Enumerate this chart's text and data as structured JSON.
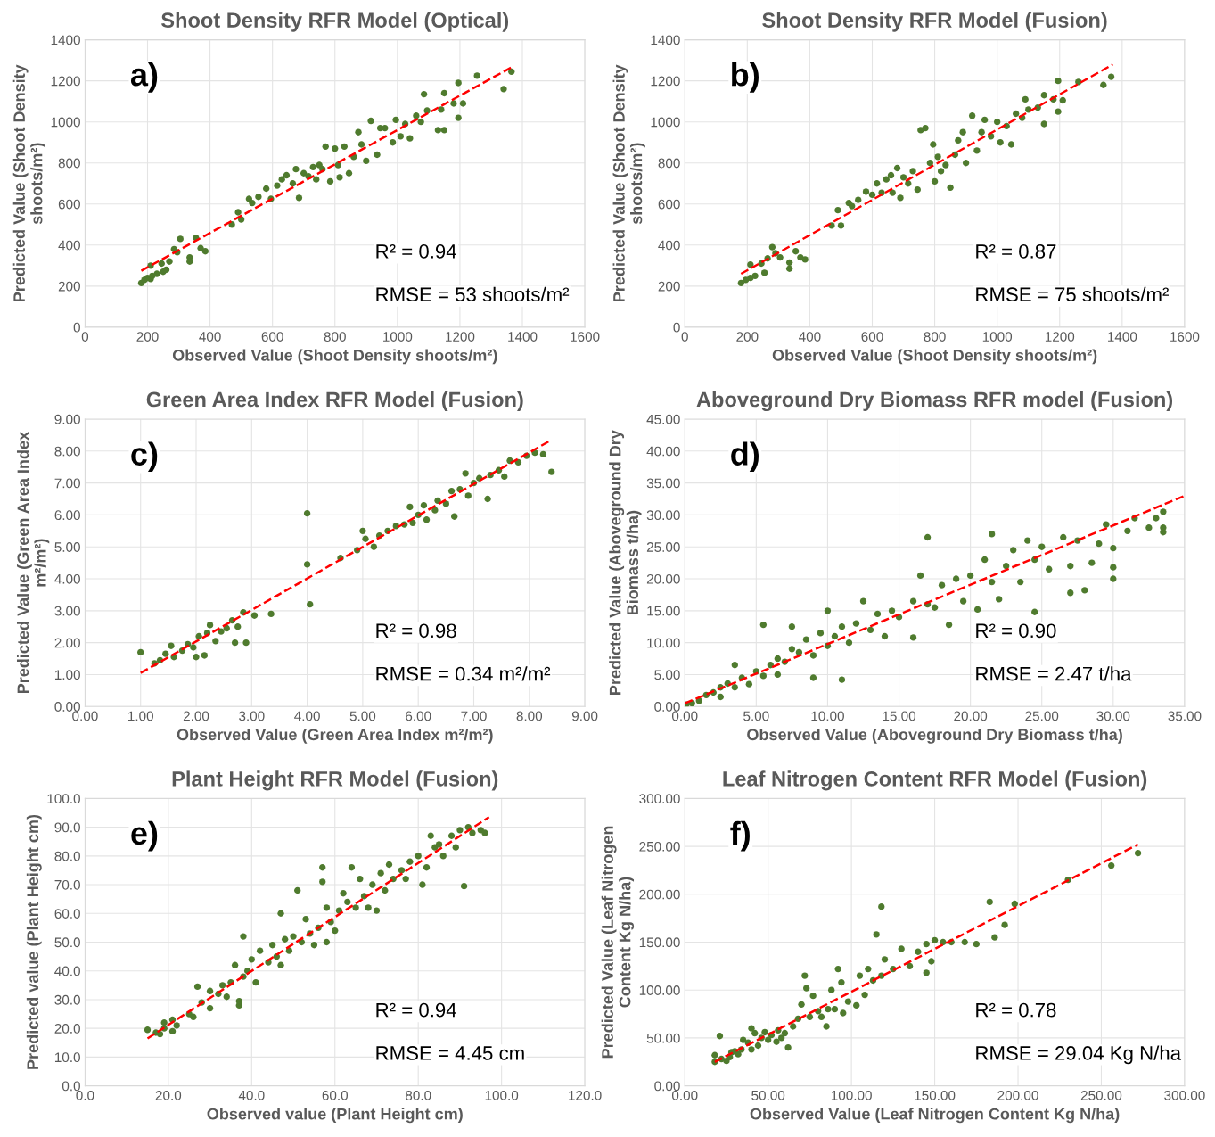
{
  "chart_data": [
    {
      "type": "scatter",
      "title": "Shoot Density RFR Model (Optical)",
      "xlabel": "Observed Value (Shoot Density shoots/m²)",
      "ylabel": "Predicted Value (Shoot Density\nshoots/m²)",
      "xlim": [
        0,
        1600
      ],
      "xticks": [
        0,
        200,
        400,
        600,
        800,
        1000,
        1200,
        1400,
        1600
      ],
      "ylim": [
        0,
        1400
      ],
      "yticks": [
        0,
        200,
        400,
        600,
        800,
        1000,
        1200,
        1400
      ],
      "grid": true,
      "marker": "circle",
      "annotations": [
        "a)",
        "R² = 0.94",
        "RMSE = 53 shoots/m²"
      ],
      "series": [
        {
          "color": "#4f7b2e",
          "x": [
            180,
            190,
            200,
            210,
            210,
            215,
            230,
            245,
            250,
            260,
            270,
            285,
            295,
            305,
            335,
            335,
            355,
            370,
            385,
            470,
            490,
            500,
            525,
            535,
            555,
            580,
            595,
            615,
            630,
            645,
            665,
            675,
            685,
            700,
            715,
            730,
            740,
            750,
            760,
            770,
            785,
            800,
            810,
            815,
            830,
            845,
            860,
            875,
            885,
            900,
            915,
            935,
            945,
            960,
            985,
            995,
            1010,
            1025,
            1040,
            1060,
            1075,
            1085,
            1095,
            1130,
            1140,
            1150,
            1150,
            1180,
            1195,
            1195,
            1210,
            1255,
            1340,
            1365
          ],
          "values": [
            215,
            230,
            240,
            235,
            300,
            250,
            260,
            310,
            270,
            280,
            320,
            380,
            365,
            430,
            340,
            320,
            435,
            385,
            370,
            500,
            560,
            525,
            625,
            605,
            635,
            675,
            625,
            690,
            720,
            740,
            700,
            770,
            630,
            750,
            735,
            780,
            720,
            790,
            770,
            880,
            710,
            870,
            790,
            730,
            880,
            750,
            830,
            950,
            890,
            810,
            1005,
            840,
            970,
            970,
            900,
            1010,
            930,
            990,
            920,
            1030,
            1000,
            1135,
            1055,
            960,
            1060,
            1140,
            960,
            1090,
            1190,
            1020,
            1090,
            1225,
            1160,
            1245
          ]
        },
        {
          "type": "line",
          "color": "#ff0000",
          "line_style": "dashed",
          "marker": "none",
          "x": [
            180,
            1370
          ],
          "values": [
            275,
            1270
          ]
        }
      ]
    },
    {
      "type": "scatter",
      "title": "Shoot Density RFR Model (Fusion)",
      "xlabel": "Observed Value (Shoot Density shoots/m²)",
      "ylabel": "Predicted Value (Shoot Density\nshoots/m²)",
      "xlim": [
        0,
        1600
      ],
      "xticks": [
        0,
        200,
        400,
        600,
        800,
        1000,
        1200,
        1400,
        1600
      ],
      "ylim": [
        0,
        1400
      ],
      "yticks": [
        0,
        200,
        400,
        600,
        800,
        1000,
        1200,
        1400
      ],
      "grid": true,
      "marker": "circle",
      "annotations": [
        "b)",
        "R² = 0.87",
        "RMSE = 75 shoots/m²"
      ],
      "series": [
        {
          "color": "#4f7b2e",
          "x": [
            180,
            195,
            210,
            210,
            225,
            245,
            255,
            265,
            280,
            290,
            305,
            335,
            335,
            355,
            370,
            385,
            470,
            490,
            500,
            525,
            535,
            555,
            580,
            600,
            615,
            630,
            645,
            660,
            665,
            680,
            690,
            700,
            715,
            730,
            745,
            755,
            770,
            785,
            795,
            800,
            810,
            820,
            835,
            850,
            865,
            875,
            890,
            900,
            920,
            935,
            950,
            960,
            980,
            1000,
            1010,
            1030,
            1045,
            1060,
            1080,
            1090,
            1100,
            1130,
            1150,
            1150,
            1180,
            1195,
            1195,
            1210,
            1260,
            1340,
            1365
          ],
          "values": [
            215,
            230,
            240,
            305,
            250,
            310,
            265,
            335,
            390,
            360,
            340,
            315,
            285,
            370,
            340,
            330,
            495,
            570,
            495,
            605,
            590,
            620,
            660,
            645,
            700,
            655,
            720,
            740,
            655,
            775,
            630,
            730,
            700,
            760,
            670,
            960,
            970,
            800,
            890,
            710,
            830,
            760,
            790,
            680,
            840,
            910,
            950,
            800,
            1030,
            860,
            950,
            1010,
            930,
            1000,
            900,
            980,
            890,
            1040,
            1020,
            1110,
            1060,
            1070,
            1130,
            990,
            1110,
            1200,
            1050,
            1105,
            1195,
            1180,
            1220
          ]
        },
        {
          "type": "line",
          "color": "#ff0000",
          "line_style": "dashed",
          "marker": "none",
          "x": [
            180,
            1370
          ],
          "values": [
            260,
            1280
          ]
        }
      ]
    },
    {
      "type": "scatter",
      "title": "Green Area Index RFR Model (Fusion)",
      "xlabel": "Observed Value (Green Area Index m²/m²)",
      "ylabel": "Predicted Value (Green Area Index\nm²/m²)",
      "xlim": [
        0,
        9
      ],
      "xticks": [
        {
          "value": 0,
          "label": "0.00"
        },
        {
          "value": 1,
          "label": "1.00"
        },
        {
          "value": 2,
          "label": "2.00"
        },
        {
          "value": 3,
          "label": "3.00"
        },
        {
          "value": 4,
          "label": "4.00"
        },
        {
          "value": 5,
          "label": "5.00"
        },
        {
          "value": 6,
          "label": "6.00"
        },
        {
          "value": 7,
          "label": "7.00"
        },
        {
          "value": 8,
          "label": "8.00"
        },
        {
          "value": 9,
          "label": "9.00"
        }
      ],
      "ylim": [
        0,
        9
      ],
      "yticks": [
        {
          "value": 0,
          "label": "0.00"
        },
        {
          "value": 1,
          "label": "1.00"
        },
        {
          "value": 2,
          "label": "2.00"
        },
        {
          "value": 3,
          "label": "3.00"
        },
        {
          "value": 4,
          "label": "4.00"
        },
        {
          "value": 5,
          "label": "5.00"
        },
        {
          "value": 6,
          "label": "6.00"
        },
        {
          "value": 7,
          "label": "7.00"
        },
        {
          "value": 8,
          "label": "8.00"
        },
        {
          "value": 9,
          "label": "9.00"
        }
      ],
      "grid": true,
      "marker": "circle",
      "annotations": [
        "c)",
        "R² = 0.98",
        "RMSE = 0.34 m²/m²"
      ],
      "series": [
        {
          "color": "#4f7b2e",
          "x": [
            1.0,
            1.25,
            1.35,
            1.45,
            1.55,
            1.6,
            1.75,
            1.85,
            1.95,
            2.05,
            2.0,
            2.15,
            2.2,
            2.25,
            2.35,
            2.45,
            2.55,
            2.65,
            2.7,
            2.75,
            2.85,
            2.9,
            3.05,
            3.35,
            4.0,
            4.0,
            4.05,
            4.6,
            4.9,
            5.0,
            5.05,
            5.2,
            5.3,
            5.45,
            5.6,
            5.75,
            5.85,
            5.9,
            6.0,
            6.1,
            6.15,
            6.3,
            6.35,
            6.5,
            6.6,
            6.65,
            6.75,
            6.85,
            6.9,
            7.0,
            7.1,
            7.25,
            7.3,
            7.45,
            7.55,
            7.65,
            7.8,
            7.95,
            8.1,
            8.25,
            8.4
          ],
          "values": [
            1.7,
            1.35,
            1.45,
            1.65,
            1.9,
            1.55,
            1.75,
            1.95,
            1.85,
            2.2,
            1.55,
            1.6,
            2.3,
            2.55,
            2.05,
            2.35,
            2.45,
            2.7,
            2.0,
            2.5,
            2.95,
            2.0,
            2.85,
            2.9,
            6.05,
            4.45,
            3.2,
            4.65,
            4.9,
            5.5,
            5.25,
            5.0,
            5.35,
            5.5,
            5.65,
            5.7,
            6.25,
            5.75,
            6.0,
            6.3,
            5.85,
            6.15,
            6.45,
            6.35,
            6.75,
            5.95,
            6.8,
            7.3,
            6.6,
            7.0,
            7.15,
            6.5,
            7.25,
            7.4,
            7.2,
            7.7,
            7.65,
            7.85,
            7.95,
            7.9,
            7.35
          ]
        },
        {
          "type": "line",
          "color": "#ff0000",
          "line_style": "dashed",
          "marker": "none",
          "x": [
            1.0,
            8.4
          ],
          "values": [
            1.05,
            8.35
          ]
        }
      ]
    },
    {
      "type": "scatter",
      "title": "Aboveground Dry Biomass RFR model (Fusion)",
      "xlabel": "Observed Value (Aboveground Dry Biomass t/ha)",
      "ylabel": "Predicted Value (Aboveground Dry\nBiomass t/ha)",
      "xlim": [
        0,
        35
      ],
      "xticks": [
        {
          "value": 0,
          "label": "0.00"
        },
        {
          "value": 5,
          "label": "5.00"
        },
        {
          "value": 10,
          "label": "10.00"
        },
        {
          "value": 15,
          "label": "15.00"
        },
        {
          "value": 20,
          "label": "20.00"
        },
        {
          "value": 25,
          "label": "25.00"
        },
        {
          "value": 30,
          "label": "30.00"
        },
        {
          "value": 35,
          "label": "35.00"
        }
      ],
      "ylim": [
        0,
        45
      ],
      "yticks": [
        {
          "value": 0,
          "label": "0.00"
        },
        {
          "value": 5,
          "label": "5.00"
        },
        {
          "value": 10,
          "label": "10.00"
        },
        {
          "value": 15,
          "label": "15.00"
        },
        {
          "value": 20,
          "label": "20.00"
        },
        {
          "value": 25,
          "label": "25.00"
        },
        {
          "value": 30,
          "label": "30.00"
        },
        {
          "value": 35,
          "label": "35.00"
        },
        {
          "value": 40,
          "label": "40.00"
        },
        {
          "value": 45,
          "label": "45.00"
        }
      ],
      "grid": true,
      "marker": "circle",
      "annotations": [
        "d)",
        "R² = 0.90",
        "RMSE = 2.47 t/ha"
      ],
      "series": [
        {
          "color": "#4f7b2e",
          "x": [
            0.1,
            0.5,
            1.0,
            1.5,
            2.0,
            2.5,
            2.5,
            3.0,
            3.5,
            3.5,
            4.0,
            4.5,
            5.0,
            5.5,
            5.5,
            6.0,
            6.5,
            6.5,
            7.0,
            7.5,
            7.5,
            8.0,
            8.5,
            9.0,
            9.0,
            9.5,
            10.0,
            10.0,
            10.5,
            11.0,
            11.0,
            11.5,
            12.0,
            12.5,
            13.0,
            13.5,
            14.0,
            14.5,
            15.0,
            16.0,
            16.0,
            16.5,
            17.0,
            17.0,
            17.5,
            18.0,
            18.5,
            19.0,
            19.5,
            20.0,
            20.5,
            21.0,
            21.5,
            21.5,
            22.0,
            22.5,
            23.0,
            23.5,
            24.0,
            24.5,
            24.5,
            25.0,
            25.5,
            26.5,
            27.0,
            27.0,
            27.5,
            28.0,
            28.5,
            29.0,
            29.5,
            30.0,
            30.0,
            30.0,
            31.0,
            31.5,
            32.5,
            33.0,
            33.5,
            33.5,
            33.5
          ],
          "values": [
            0.3,
            0.5,
            0.9,
            1.8,
            2.2,
            3.0,
            1.5,
            3.6,
            6.5,
            3.0,
            4.5,
            3.5,
            5.5,
            12.8,
            4.8,
            6.5,
            7.5,
            5.0,
            7.0,
            9.0,
            12.5,
            8.5,
            10.5,
            4.5,
            8.0,
            11.5,
            15.0,
            9.5,
            11.0,
            4.2,
            12.5,
            10.0,
            13.0,
            16.5,
            12.0,
            14.5,
            11.0,
            15.0,
            14.0,
            10.8,
            16.5,
            20.5,
            26.5,
            16.0,
            15.5,
            19.0,
            12.8,
            20.0,
            16.5,
            20.5,
            15.2,
            23.0,
            27.0,
            19.5,
            16.8,
            22.0,
            24.5,
            19.5,
            26.0,
            14.8,
            23.0,
            25.0,
            21.5,
            26.5,
            17.8,
            22.0,
            26.0,
            18.2,
            22.5,
            25.5,
            28.5,
            21.8,
            20.0,
            24.8,
            27.5,
            29.5,
            28.0,
            29.5,
            28.0,
            30.5,
            27.3
          ]
        },
        {
          "type": "line",
          "color": "#ff0000",
          "line_style": "dashed",
          "marker": "none",
          "x": [
            0,
            35
          ],
          "values": [
            0.5,
            33
          ]
        }
      ]
    },
    {
      "type": "scatter",
      "title": "Plant Height RFR Model (Fusion)",
      "xlabel": "Observed value (Plant Height cm)",
      "ylabel": "Predicted value (Plant Height cm)",
      "xlim": [
        0,
        120
      ],
      "xticks": [
        {
          "value": 0,
          "label": "0.0"
        },
        {
          "value": 20,
          "label": "20.0"
        },
        {
          "value": 40,
          "label": "40.0"
        },
        {
          "value": 60,
          "label": "60.0"
        },
        {
          "value": 80,
          "label": "80.0"
        },
        {
          "value": 100,
          "label": "100.0"
        },
        {
          "value": 120,
          "label": "120.0"
        }
      ],
      "ylim": [
        0,
        100
      ],
      "yticks": [
        {
          "value": 0,
          "label": "0.0"
        },
        {
          "value": 10,
          "label": "10.0"
        },
        {
          "value": 20,
          "label": "20.0"
        },
        {
          "value": 30,
          "label": "30.0"
        },
        {
          "value": 40,
          "label": "40.0"
        },
        {
          "value": 50,
          "label": "50.0"
        },
        {
          "value": 60,
          "label": "60.0"
        },
        {
          "value": 70,
          "label": "70.0"
        },
        {
          "value": 80,
          "label": "80.0"
        },
        {
          "value": 90,
          "label": "90.0"
        },
        {
          "value": 100,
          "label": "100.0"
        }
      ],
      "grid": true,
      "marker": "circle",
      "annotations": [
        "e)",
        "R² = 0.94",
        "RMSE = 4.45 cm"
      ],
      "series": [
        {
          "color": "#4f7b2e",
          "x": [
            15,
            17,
            18,
            19,
            19,
            21,
            21,
            22,
            25,
            26,
            27,
            28,
            30,
            30,
            32,
            33,
            34,
            35,
            36,
            37,
            37,
            38,
            38,
            39,
            40,
            41,
            42,
            44,
            45,
            46,
            47,
            47,
            48,
            49,
            50,
            51,
            52,
            53,
            54,
            55,
            56,
            57,
            57,
            58,
            58,
            59,
            60,
            61,
            62,
            63,
            64,
            65,
            66,
            67,
            68,
            69,
            70,
            71,
            72,
            73,
            74,
            76,
            77,
            78,
            80,
            81,
            82,
            83,
            84,
            85,
            86,
            88,
            89,
            90,
            91,
            92,
            93,
            95,
            96
          ],
          "values": [
            19.5,
            18.5,
            18,
            22,
            20,
            23,
            19,
            21,
            25,
            24,
            34.5,
            29,
            27,
            33,
            32,
            35,
            31,
            36,
            42,
            28,
            29.5,
            52,
            38,
            40,
            44,
            36,
            47,
            43,
            49,
            45,
            42,
            60,
            51,
            47,
            52,
            68,
            50,
            58,
            53,
            49,
            55,
            76,
            71,
            50,
            62,
            57,
            54,
            61,
            67,
            64,
            76,
            62,
            72,
            66,
            62,
            70,
            61,
            74,
            68,
            77,
            72,
            75,
            72,
            78,
            80,
            70,
            76,
            87,
            83,
            84,
            80,
            87,
            83,
            89,
            69.5,
            90,
            88,
            89,
            88
          ]
        },
        {
          "type": "line",
          "color": "#ff0000",
          "line_style": "dashed",
          "marker": "none",
          "x": [
            15,
            97
          ],
          "values": [
            16.5,
            93.5
          ]
        }
      ]
    },
    {
      "type": "scatter",
      "title": "Leaf Nitrogen Content RFR Model (Fusion)",
      "xlabel": "Observed Value (Leaf Nitrogen Content Kg N/ha)",
      "ylabel": "Predicted Value (Leaf Nitrogen\nContent Kg N/ha)",
      "xlim": [
        0,
        300
      ],
      "xticks": [
        {
          "value": 0,
          "label": "0.00"
        },
        {
          "value": 50,
          "label": "50.00"
        },
        {
          "value": 100,
          "label": "100.00"
        },
        {
          "value": 150,
          "label": "150.00"
        },
        {
          "value": 200,
          "label": "200.00"
        },
        {
          "value": 250,
          "label": "250.00"
        },
        {
          "value": 300,
          "label": "300.00"
        }
      ],
      "ylim": [
        0,
        300
      ],
      "yticks": [
        {
          "value": 0,
          "label": "0.00"
        },
        {
          "value": 50,
          "label": "50.00"
        },
        {
          "value": 100,
          "label": "100.00"
        },
        {
          "value": 150,
          "label": "150.00"
        },
        {
          "value": 200,
          "label": "200.00"
        },
        {
          "value": 250,
          "label": "250.00"
        },
        {
          "value": 300,
          "label": "300.00"
        }
      ],
      "grid": true,
      "marker": "circle",
      "annotations": [
        "f)",
        "R² = 0.78",
        "RMSE = 29.04 Kg N/ha"
      ],
      "series": [
        {
          "color": "#4f7b2e",
          "x": [
            18,
            18,
            21,
            22,
            25,
            27,
            28,
            30,
            32,
            34,
            35,
            38,
            40,
            40,
            42,
            44,
            46,
            48,
            50,
            52,
            55,
            56,
            58,
            60,
            62,
            65,
            68,
            70,
            72,
            73,
            75,
            77,
            80,
            82,
            85,
            86,
            88,
            90,
            92,
            94,
            95,
            98,
            103,
            105,
            108,
            110,
            113,
            115,
            118,
            118,
            120,
            125,
            130,
            135,
            140,
            145,
            145,
            148,
            150,
            155,
            160,
            168,
            175,
            183,
            186,
            192,
            198,
            230,
            256,
            272
          ],
          "values": [
            25,
            32,
            52,
            28,
            26,
            30,
            35,
            36,
            33,
            38,
            48,
            45,
            38,
            60,
            55,
            42,
            50,
            56,
            48,
            53,
            46,
            58,
            50,
            55,
            40,
            62,
            70,
            85,
            115,
            102,
            72,
            94,
            78,
            72,
            62,
            80,
            100,
            80,
            122,
            108,
            76,
            88,
            84,
            115,
            95,
            122,
            110,
            158,
            187,
            115,
            132,
            122,
            143,
            125,
            140,
            148,
            118,
            130,
            152,
            150,
            150,
            150,
            148,
            192,
            155,
            168,
            190,
            215,
            230,
            243
          ]
        },
        {
          "type": "line",
          "color": "#ff0000",
          "line_style": "dashed",
          "marker": "none",
          "x": [
            18,
            272
          ],
          "values": [
            25,
            252
          ]
        }
      ]
    }
  ]
}
